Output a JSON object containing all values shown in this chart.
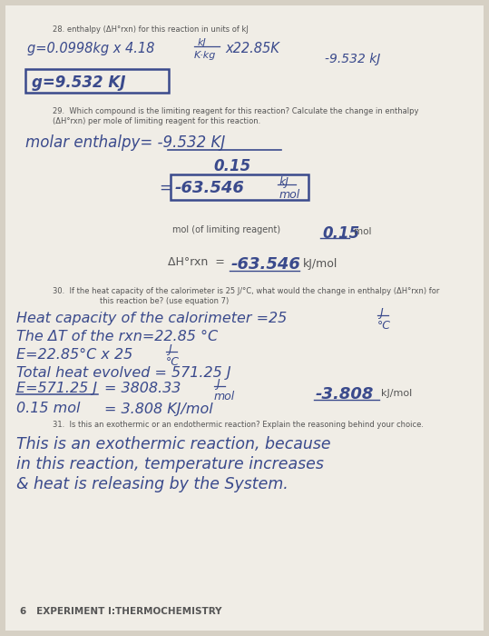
{
  "bg_color": "#d6d0c4",
  "page_bg": "#f0ede6",
  "q28_label": "28. enthalpy (ΔH°rxn) for this reaction in units of kJ",
  "q28_line1": "g=0.0998kg x 4.18  kJ   x22.85K",
  "q28_line1b": "K·kg",
  "q28_neg": "-9.532 kJ",
  "q28_boxed": "g=9.532 KJ",
  "q29_label": "29.  Which compound is the limiting reagent for this reaction? Calculate the change in enthalpy",
  "q29_label2": "(ΔH°rxn) per mole of limiting reagent for this reaction.",
  "q29_molar1": "molar enthalpy= -9.532 KJ",
  "q29_molar2": "0.15",
  "q29_result": "= -63.546  KJ",
  "q29_result2": "mol",
  "q29_mol": "mol (of limiting reagent)  0.15 mol",
  "q29_delta": "ΔH°rxn  =  -63.546 kJ/mol",
  "q30_label": "30.  If the heat capacity of the calorimeter is 25 J/°C, what would the change in enthalpy (ΔH°rxn) for",
  "q30_label2": "this reaction be? (use equation 7)",
  "q30_h1": "Heat capacity of the calorimeter =25  J",
  "q30_h1b": "°C",
  "q30_h2": "The ΔT of the rxn=22.85 °C",
  "q30_h3": "E=22.85°C x 25  J",
  "q30_h3b": "°C",
  "q30_h4": "Total heat evolved = 571.25 J",
  "q30_h5a": "E=571.25 J",
  "q30_h5b": "0.15 mol",
  "q30_h5c": "= 3808.33   J",
  "q30_h5c2": "mol",
  "q30_h5d": "= 3.808 KJ/mol",
  "q30_neg": "-3.808 kJ/mol",
  "q31_label": "31.  Is this an exothermic or an endothermic reaction? Explain the reasoning behind your choice.",
  "q31_h1": "This is an exothermic reaction, because",
  "q31_h2": "in this reaction, temperature increases",
  "q31_h3": "& heat is releasing by the System.",
  "footer": "6   EXPERIMENT I:THERMOCHEMISTRY",
  "hw": "#3a4a8c",
  "pr": "#555555",
  "bx": "#3a4a8c"
}
